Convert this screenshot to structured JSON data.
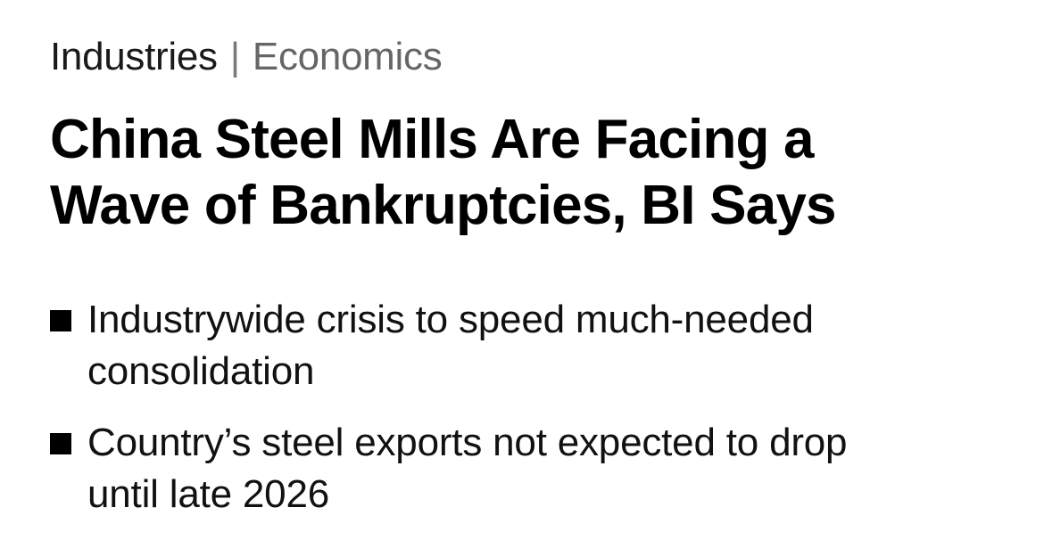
{
  "breadcrumb": {
    "primary": "Industries",
    "separator": "|",
    "secondary": "Economics"
  },
  "headline": {
    "line1": "China Steel Mills Are Facing a",
    "line2": "Wave of Bankruptcies, BI Says"
  },
  "bullets": [
    {
      "line1": "Industrywide crisis to speed much-needed",
      "line2": "consolidation"
    },
    {
      "line1": "Country’s steel exports not expected to drop",
      "line2": "until late 2026"
    }
  ],
  "colors": {
    "text": "#000000",
    "breadcrumb_secondary": "#666666",
    "background": "#ffffff"
  }
}
